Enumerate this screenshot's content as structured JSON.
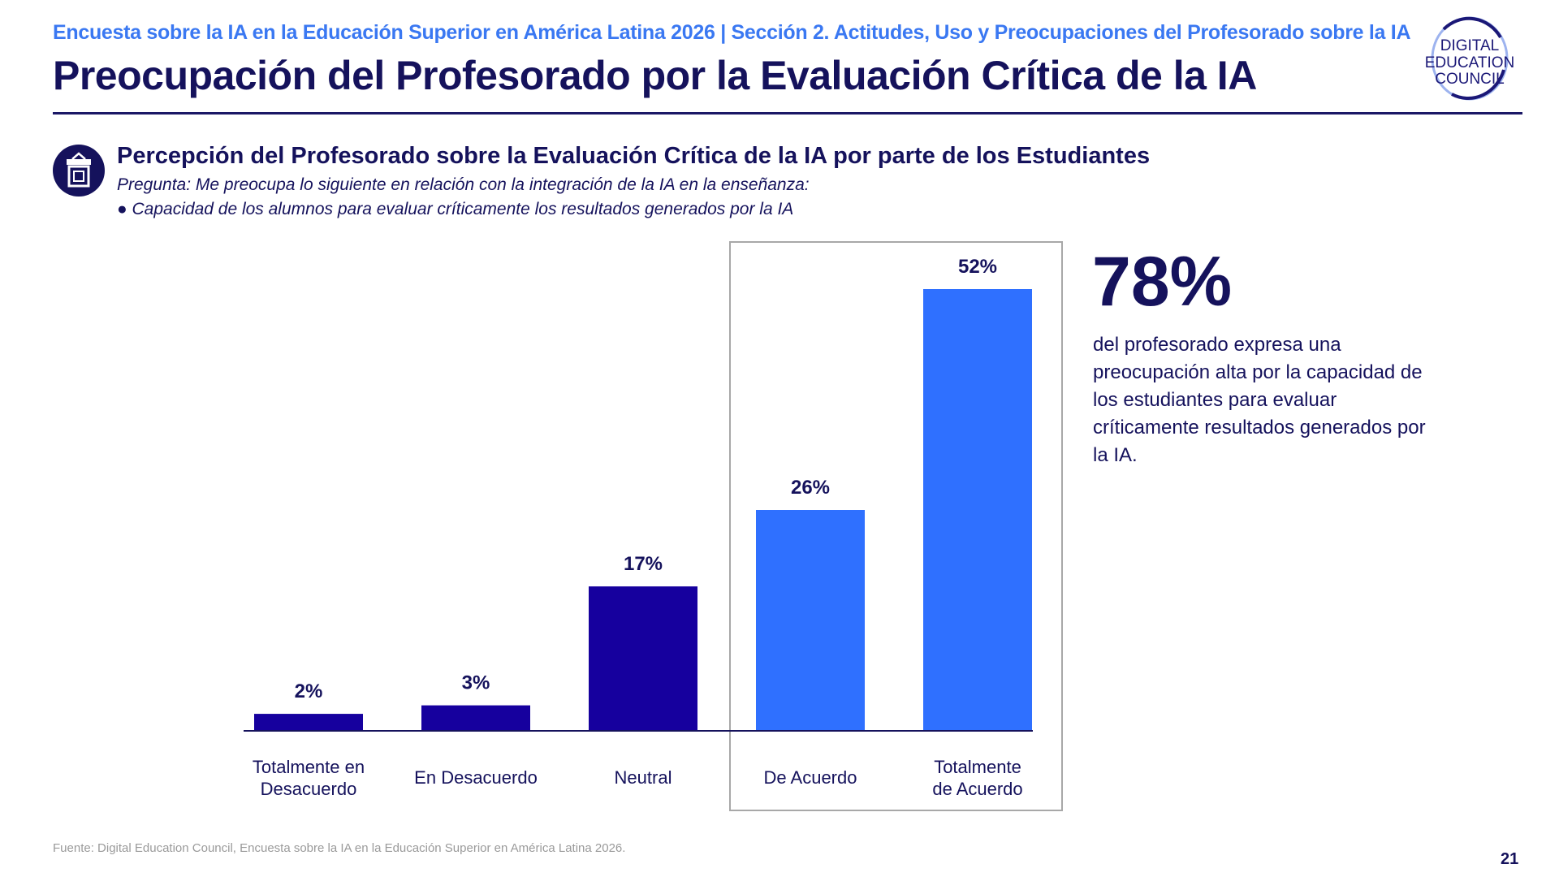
{
  "header": {
    "kicker": "Encuesta sobre la IA en la Educación Superior en América Latina 2026 | Sección 2. Actitudes, Uso y Preocupaciones del Profesorado sobre la IA",
    "title": "Preocupación del Profesorado por la Evaluación Crítica de la IA",
    "logo_text": [
      "DIGITAL",
      "EDUCATION",
      "COUNCIL"
    ]
  },
  "section": {
    "icon": "podium-icon",
    "title": "Percepción del Profesorado sobre la Evaluación Crítica de la IA por parte de los Estudiantes",
    "question": "Pregunta: Me preocupa lo siguiente en relación con la integración de la IA en la enseñanza:",
    "bullet": "● Capacidad de los alumnos para evaluar críticamente los resultados generados por la IA"
  },
  "chart_data": {
    "type": "bar",
    "categories": [
      [
        "Totalmente en",
        "Desacuerdo"
      ],
      [
        "En Desacuerdo"
      ],
      [
        "Neutral"
      ],
      [
        "De Acuerdo"
      ],
      [
        "Totalmente",
        "de Acuerdo"
      ]
    ],
    "values": [
      2,
      3,
      17,
      26,
      52
    ],
    "data_labels": [
      "2%",
      "3%",
      "17%",
      "26%",
      "52%"
    ],
    "unit": "%",
    "ylim": [
      0,
      52
    ],
    "grid": false,
    "colors": [
      "#16009e",
      "#16009e",
      "#16009e",
      "#2f70ff",
      "#2f70ff"
    ],
    "highlighted_categories": [
      "De Acuerdo",
      "Totalmente de Acuerdo"
    ]
  },
  "callout": {
    "value": "78%",
    "text": "del profesorado expresa una preocupación alta por la capacidad de los estudiantes para evaluar críticamente resultados generados por la IA."
  },
  "footer": {
    "source": "Fuente: Digital Education Council, Encuesta sobre la IA en la Educación Superior en América Latina 2026.",
    "page": "21"
  }
}
